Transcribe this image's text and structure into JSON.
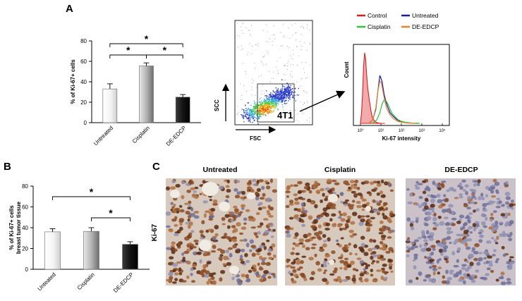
{
  "panel_labels": {
    "a": "A",
    "b": "B",
    "c": "C"
  },
  "bar_colors": {
    "untreated": "#f2f2f2",
    "cisplatin": "#a9a9a9",
    "de_edcp": "#141414"
  },
  "significance_mark": "*",
  "chart_data": [
    {
      "id": "A-bar",
      "type": "bar",
      "categories": [
        "Untreated",
        "Cisplatin",
        "DE-EDCP"
      ],
      "values": [
        33,
        55.5,
        25
      ],
      "errors": [
        5,
        3,
        2.5
      ],
      "ylabel": "% of Ki-67+ cells",
      "ylim": [
        0,
        80
      ],
      "yticks": [
        0,
        20,
        40,
        60,
        80
      ],
      "grid": false,
      "significance": [
        {
          "from": 0,
          "to": 1,
          "label": "*"
        },
        {
          "from": 1,
          "to": 2,
          "label": "*"
        },
        {
          "from": 0,
          "to": 2,
          "label": "*"
        }
      ]
    },
    {
      "id": "A-scatter",
      "type": "scatter",
      "xlabel": "FSC",
      "ylabel": "SCC",
      "gate_label": "4T1"
    },
    {
      "id": "A-histogram",
      "type": "line",
      "xlabel": "Ki-67 intensity",
      "ylabel": "Count",
      "xscale": "log",
      "xticks": [
        "10⁰",
        "10¹",
        "10²",
        "10³",
        "10⁴"
      ],
      "legend": [
        {
          "name": "Control",
          "color": "#d42020"
        },
        {
          "name": "Untreated",
          "color": "#1a1aa8"
        },
        {
          "name": "Cisplatin",
          "color": "#33c233"
        },
        {
          "name": "DE-EDCP",
          "color": "#e8832a"
        }
      ],
      "series": [
        {
          "name": "Control",
          "color": "#d42020",
          "filled": true,
          "x": [
            0,
            0.05,
            0.1,
            0.15,
            0.2,
            0.25,
            0.3,
            0.35,
            0.4,
            0.45,
            0.5,
            0.55,
            0.6,
            0.7,
            0.8,
            0.9,
            1.0,
            1.2
          ],
          "y": [
            0,
            0.15,
            0.4,
            0.8,
            1.0,
            0.92,
            0.7,
            0.52,
            0.4,
            0.3,
            0.2,
            0.12,
            0.07,
            0.03,
            0.01,
            0.005,
            0,
            0
          ]
        },
        {
          "name": "Untreated",
          "color": "#1a1aa8",
          "filled": false,
          "x": [
            0.4,
            0.6,
            0.75,
            0.85,
            0.95,
            1.05,
            1.15,
            1.25,
            1.35,
            1.45,
            1.6,
            1.75,
            1.9,
            2.1,
            2.4,
            2.8
          ],
          "y": [
            0,
            0.05,
            0.2,
            0.45,
            0.68,
            0.6,
            0.42,
            0.3,
            0.22,
            0.15,
            0.1,
            0.06,
            0.03,
            0.015,
            0.005,
            0
          ]
        },
        {
          "name": "Cisplatin",
          "color": "#33c233",
          "filled": false,
          "x": [
            0.6,
            0.8,
            0.95,
            1.05,
            1.15,
            1.25,
            1.35,
            1.45,
            1.55,
            1.7,
            1.85,
            2.0,
            2.2,
            2.5,
            2.9
          ],
          "y": [
            0,
            0.05,
            0.15,
            0.27,
            0.33,
            0.32,
            0.27,
            0.2,
            0.14,
            0.09,
            0.05,
            0.03,
            0.015,
            0.005,
            0
          ]
        },
        {
          "name": "DE-EDCP",
          "color": "#e8832a",
          "filled": false,
          "x": [
            0.4,
            0.6,
            0.75,
            0.85,
            0.95,
            1.02,
            1.1,
            1.2,
            1.3,
            1.45,
            1.6,
            1.8,
            2.0,
            2.3,
            2.7
          ],
          "y": [
            0,
            0.05,
            0.22,
            0.45,
            0.6,
            0.58,
            0.45,
            0.3,
            0.2,
            0.12,
            0.07,
            0.03,
            0.015,
            0.005,
            0
          ]
        }
      ]
    },
    {
      "id": "B-bar",
      "type": "bar",
      "categories": [
        "Unteated",
        "Cisplatin",
        "DE-EDCP"
      ],
      "values": [
        36,
        36.5,
        24
      ],
      "errors": [
        3,
        3.5,
        2.5
      ],
      "ylabel": "% of  Ki-67+ cells breast tumor tissue",
      "ylim": [
        0,
        80
      ],
      "yticks": [
        0,
        20,
        40,
        60,
        80
      ],
      "grid": false,
      "significance": [
        {
          "from": 0,
          "to": 2,
          "label": "*"
        },
        {
          "from": 1,
          "to": 2,
          "label": "*"
        }
      ]
    }
  ],
  "panel_c": {
    "row_label": "Ki-67",
    "images": [
      {
        "title": "Untreated",
        "stain_density": 0.8
      },
      {
        "title": "Cisplatin",
        "stain_density": 0.92
      },
      {
        "title": "DE-EDCP",
        "stain_density": 0.22
      }
    ]
  }
}
